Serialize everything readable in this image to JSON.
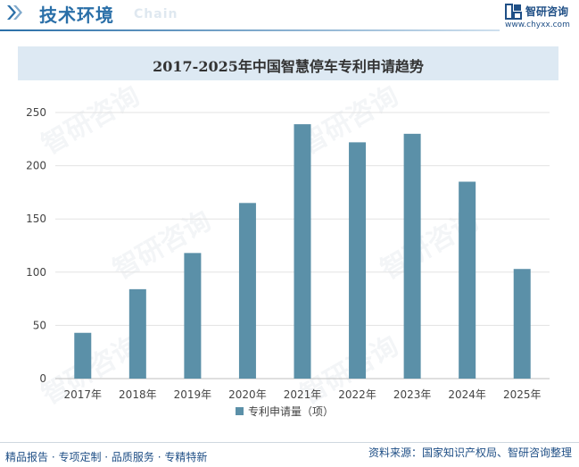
{
  "header": {
    "title": "技术环境",
    "subtitle": "Chain",
    "brand_name": "智研咨询",
    "brand_url": "www.chyxx.com",
    "brand_color": "#1f4f86",
    "accent_color": "#2a6fa8"
  },
  "watermark_text": "智研咨询",
  "chart_data": {
    "type": "bar",
    "title": "2017-2025年中国智慧停车专利申请趋势",
    "categories": [
      "2017年",
      "2018年",
      "2019年",
      "2020年",
      "2021年",
      "2022年",
      "2023年",
      "2024年",
      "2025年"
    ],
    "series": [
      {
        "name": "专利申请量（项）",
        "values": [
          43,
          84,
          118,
          165,
          239,
          222,
          230,
          185,
          103
        ],
        "color": "#5b90a8"
      }
    ],
    "ylim": [
      0,
      250
    ],
    "yticks": [
      0,
      50,
      100,
      150,
      200,
      250
    ],
    "grid": true,
    "legend": "bottom"
  },
  "footer": {
    "left": "精品报告 · 专项定制 · 品质服务 · 专精特新",
    "right": "资料来源：国家知识产权局、智研咨询整理"
  }
}
